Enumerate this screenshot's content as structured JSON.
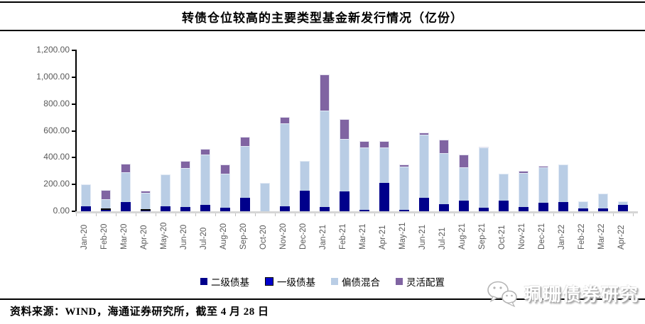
{
  "title": "转债仓位较高的主要类型基金新发行情况（亿份）",
  "y_axis": {
    "tick_labels": [
      "0.00",
      "200.00",
      "400.00",
      "600.00",
      "800.00",
      "1,000.00",
      "1,200.00"
    ],
    "min": 0,
    "max": 1200,
    "step": 200
  },
  "chart_data": {
    "type": "bar",
    "stacked": true,
    "title": "转债仓位较高的主要类型基金新发行情况（亿份）",
    "xlabel": "",
    "ylabel": "",
    "ylim": [
      0,
      1200
    ],
    "grid": false,
    "legend_position": "bottom",
    "categories": [
      "Jan-20",
      "Feb-20",
      "Mar-20",
      "Apr-20",
      "May-20",
      "Jun-20",
      "Jul-20",
      "Aug-20",
      "Sep-20",
      "Oct-20",
      "Nov-20",
      "Dec-20",
      "Jan-21",
      "Feb-21",
      "Mar-21",
      "Apr-21",
      "May-21",
      "Jun-21",
      "Jul-21",
      "Aug-21",
      "Sep-21",
      "Oct-21",
      "Nov-21",
      "Dec-21",
      "Jan-22",
      "Feb-22",
      "Mar-22",
      "Apr-22"
    ],
    "series": [
      {
        "name": "二级债基",
        "color": "#00008B",
        "values": [
          35,
          10,
          70,
          3,
          35,
          30,
          45,
          25,
          100,
          0,
          35,
          155,
          30,
          150,
          10,
          210,
          10,
          100,
          55,
          80,
          25,
          80,
          30,
          65,
          70,
          20,
          20,
          45
        ]
      },
      {
        "name": "一级债基",
        "color": "#0000CD",
        "border_color": "#000000",
        "values": [
          0,
          8,
          0,
          6,
          0,
          0,
          0,
          0,
          0,
          0,
          0,
          0,
          0,
          0,
          0,
          0,
          0,
          0,
          0,
          0,
          0,
          0,
          0,
          0,
          0,
          0,
          0,
          0
        ]
      },
      {
        "name": "偏债混合",
        "color": "#B9CDE5",
        "values": [
          165,
          67,
          220,
          121,
          240,
          290,
          373,
          256,
          385,
          210,
          620,
          220,
          718,
          390,
          465,
          263,
          324,
          470,
          378,
          248,
          448,
          200,
          255,
          262,
          280,
          52,
          110,
          28
        ]
      },
      {
        "name": "灵活配置",
        "color": "#8064A2",
        "values": [
          0,
          70,
          65,
          15,
          0,
          55,
          42,
          69,
          70,
          0,
          50,
          0,
          272,
          150,
          50,
          47,
          14,
          15,
          100,
          97,
          5,
          0,
          15,
          8,
          0,
          0,
          0,
          0
        ]
      }
    ]
  },
  "legend_items": [
    "二级债基",
    "一级债基",
    "偏债混合",
    "灵活配置"
  ],
  "footer": {
    "source_text": "资料来源：WIND，海通证券研究所，截至 4 月 28 日"
  },
  "watermark": {
    "text": "珮珊债券研究",
    "icon": "wechat-chat-bubbles-icon"
  },
  "colors": {
    "secondary_bond": "#00008B",
    "primary_bond": "#0000CD",
    "bond_biased_hybrid": "#B9CDE5",
    "flexible_allocation": "#8064A2",
    "axis_text": "#595959",
    "baseline": "#D6D6D6",
    "rule": "#000000"
  }
}
